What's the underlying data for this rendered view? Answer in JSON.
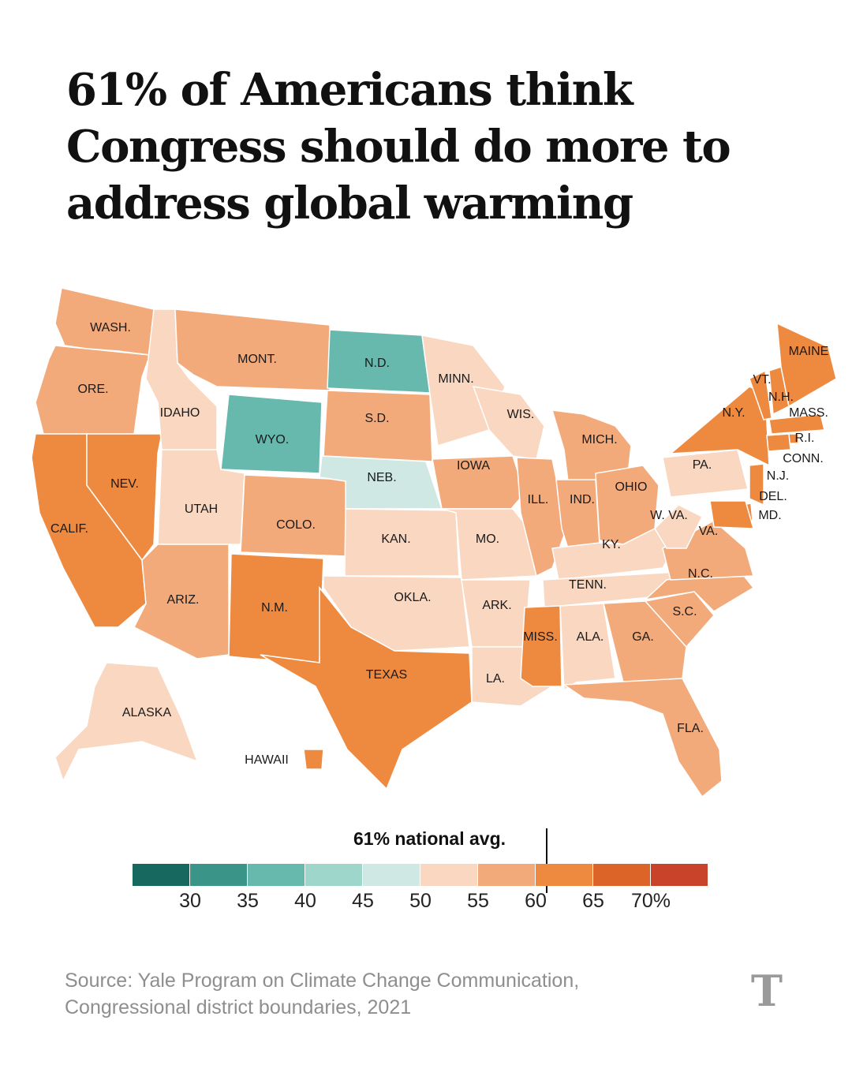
{
  "title": "61% of Americans think Congress should do more to address global warming",
  "legend": {
    "avg_label": "61% national avg.",
    "ticks": [
      "30",
      "35",
      "40",
      "45",
      "50",
      "55",
      "60",
      "65",
      "70%"
    ],
    "colors": [
      "#17685e",
      "#3a9488",
      "#67b8ad",
      "#9fd6cc",
      "#cfe8e4",
      "#f9d7c1",
      "#f3aa7b",
      "#ee8940",
      "#dd6429",
      "#c9422a"
    ],
    "national_avg": 61
  },
  "states": [
    {
      "abbr": "WASH.",
      "color": "#f3aa7b"
    },
    {
      "abbr": "ORE.",
      "color": "#f3aa7b"
    },
    {
      "abbr": "CALIF.",
      "color": "#ee8940"
    },
    {
      "abbr": "NEV.",
      "color": "#ee8940"
    },
    {
      "abbr": "IDAHO",
      "color": "#f9d7c1"
    },
    {
      "abbr": "MONT.",
      "color": "#f3aa7b"
    },
    {
      "abbr": "WYO.",
      "color": "#67b8ad"
    },
    {
      "abbr": "UTAH",
      "color": "#f9d7c1"
    },
    {
      "abbr": "ARIZ.",
      "color": "#f3aa7b"
    },
    {
      "abbr": "COLO.",
      "color": "#f3aa7b"
    },
    {
      "abbr": "N.M.",
      "color": "#ee8940"
    },
    {
      "abbr": "N.D.",
      "color": "#67b8ad"
    },
    {
      "abbr": "S.D.",
      "color": "#f3aa7b"
    },
    {
      "abbr": "NEB.",
      "color": "#cfe8e4"
    },
    {
      "abbr": "KAN.",
      "color": "#f9d7c1"
    },
    {
      "abbr": "OKLA.",
      "color": "#f9d7c1"
    },
    {
      "abbr": "TEXAS",
      "color": "#ee8940"
    },
    {
      "abbr": "MINN.",
      "color": "#f9d7c1"
    },
    {
      "abbr": "IOWA",
      "color": "#f3aa7b"
    },
    {
      "abbr": "MO.",
      "color": "#f9d7c1"
    },
    {
      "abbr": "ARK.",
      "color": "#f9d7c1"
    },
    {
      "abbr": "LA.",
      "color": "#f9d7c1"
    },
    {
      "abbr": "WIS.",
      "color": "#f9d7c1"
    },
    {
      "abbr": "ILL.",
      "color": "#f3aa7b"
    },
    {
      "abbr": "MICH.",
      "color": "#f3aa7b"
    },
    {
      "abbr": "IND.",
      "color": "#f3aa7b"
    },
    {
      "abbr": "OHIO",
      "color": "#f3aa7b"
    },
    {
      "abbr": "KY.",
      "color": "#f9d7c1"
    },
    {
      "abbr": "TENN.",
      "color": "#f9d7c1"
    },
    {
      "abbr": "MISS.",
      "color": "#ee8940"
    },
    {
      "abbr": "ALA.",
      "color": "#f9d7c1"
    },
    {
      "abbr": "GA.",
      "color": "#f3aa7b"
    },
    {
      "abbr": "FLA.",
      "color": "#f3aa7b"
    },
    {
      "abbr": "S.C.",
      "color": "#f3aa7b"
    },
    {
      "abbr": "N.C.",
      "color": "#f3aa7b"
    },
    {
      "abbr": "VA.",
      "color": "#f3aa7b"
    },
    {
      "abbr": "W. VA.",
      "color": "#f9d7c1"
    },
    {
      "abbr": "PA.",
      "color": "#f9d7c1"
    },
    {
      "abbr": "N.Y.",
      "color": "#ee8940"
    },
    {
      "abbr": "VT.",
      "color": "#ee8940"
    },
    {
      "abbr": "N.H.",
      "color": "#ee8940"
    },
    {
      "abbr": "MAINE",
      "color": "#ee8940"
    },
    {
      "abbr": "MASS.",
      "color": "#ee8940"
    },
    {
      "abbr": "R.I.",
      "color": "#ee8940"
    },
    {
      "abbr": "CONN.",
      "color": "#ee8940"
    },
    {
      "abbr": "N.J.",
      "color": "#ee8940"
    },
    {
      "abbr": "DEL.",
      "color": "#ee8940"
    },
    {
      "abbr": "MD.",
      "color": "#ee8940"
    },
    {
      "abbr": "ALASKA",
      "color": "#f9d7c1"
    },
    {
      "abbr": "HAWAII",
      "color": "#ee8940"
    }
  ],
  "source_lines": [
    "Source: Yale Program on Climate Change Communication,",
    "Congressional district boundaries, 2021"
  ],
  "logo": "T"
}
